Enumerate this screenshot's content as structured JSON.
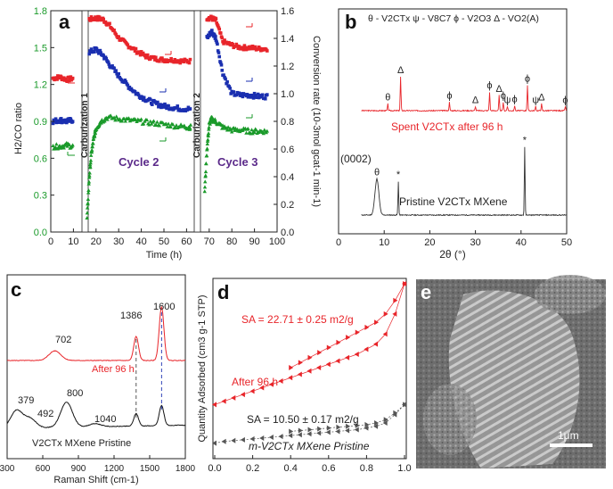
{
  "panels": {
    "a": {
      "letter": "a",
      "xlabel": "Time (h)",
      "ylabel_left": "H2/CO ratio",
      "ylabel_right": "Conversion rate (10-3mol gcat-1 min-1)",
      "left_ylim": [
        0.0,
        1.8
      ],
      "right_ylim": [
        0.0,
        1.6
      ],
      "xlim": [
        0,
        100
      ],
      "x_ticks": [
        0,
        10,
        20,
        30,
        40,
        50,
        60,
        70,
        80,
        90,
        100
      ],
      "left_ticks": [
        "0.0",
        "0.3",
        "0.6",
        "0.9",
        "1.2",
        "1.5",
        "1.8"
      ],
      "right_ticks": [
        "0.0",
        "0.2",
        "0.4",
        "0.6",
        "0.8",
        "1.0",
        "1.2",
        "1.4",
        "1.6"
      ],
      "band1_label": "Carburization 1",
      "band2_label": "Carburization 2",
      "cycle2_label": "Cycle 2",
      "cycle3_label": "Cycle 3",
      "colors": {
        "h2co": "#e8252a",
        "co2": "#1a2fb0",
        "ch4": "#1a9a2a",
        "band_label": "#5b2a8a"
      }
    },
    "b": {
      "letter": "b",
      "legend": "θ - V2CTx   ψ - V8C7   ϕ - V2O3   Δ - VO2(A)",
      "xlabel": "2θ (°)",
      "xlim": [
        0,
        50
      ],
      "x_ticks": [
        "0",
        "10",
        "20",
        "30",
        "40",
        "50"
      ],
      "spent_label": "Spent V2CTx after 96 h",
      "pristine_label": "Pristine V2CTx MXene",
      "plane_label": "(0002)",
      "markers_spent": [
        {
          "x": 10.8,
          "sym": "θ"
        },
        {
          "x": 13.6,
          "sym": "Δ"
        },
        {
          "x": 24.3,
          "sym": "ϕ"
        },
        {
          "x": 30.0,
          "sym": "Δ"
        },
        {
          "x": 33.1,
          "sym": "ϕ"
        },
        {
          "x": 35.2,
          "sym": "Δ"
        },
        {
          "x": 36.1,
          "sym": "ϕ"
        },
        {
          "x": 37.0,
          "sym": "ψ"
        },
        {
          "x": 38.6,
          "sym": "ϕ"
        },
        {
          "x": 41.4,
          "sym": "ϕ"
        },
        {
          "x": 43.2,
          "sym": "ψ"
        },
        {
          "x": 44.5,
          "sym": "Δ"
        },
        {
          "x": 49.7,
          "sym": "ϕ"
        }
      ],
      "markers_pristine": [
        {
          "x": 8.4,
          "sym": "θ"
        },
        {
          "x": 13.1,
          "sym": "*"
        },
        {
          "x": 40.8,
          "sym": "*"
        }
      ],
      "colors": {
        "spent": "#e8252a",
        "pristine": "#333333",
        "spent_label": "#e8252a"
      }
    },
    "c": {
      "letter": "c",
      "xlabel": "Raman Shift (cm-1)",
      "xlim": [
        300,
        1800
      ],
      "x_ticks": [
        "300",
        "600",
        "900",
        "1200",
        "1500",
        "1800"
      ],
      "after_label": "After 96 h",
      "pristine_label": "V2CTx MXene Pristine",
      "peak_labels": {
        "p1600": "1600",
        "p1386": "1386",
        "p702": "702",
        "p379": "379",
        "p492": "492",
        "p800": "800",
        "p1040": "1040"
      },
      "colors": {
        "after": "#e8252a",
        "pristine": "#111111",
        "guide_red": "#444444",
        "guide_blue": "#1a2fb0"
      }
    },
    "d": {
      "letter": "d",
      "ylabel": "Quantity Adsorbed (cm3 g-1 STP)",
      "xlim": [
        0.0,
        1.0
      ],
      "x_ticks": [
        "0.0",
        "0.2",
        "0.4",
        "0.6",
        "0.8",
        "1.0"
      ],
      "sa_after": "SA = 22.71 ± 0.25 m2/g",
      "sa_pristine": "SA = 10.50 ± 0.17 m2/g",
      "after_label": "After 96 h",
      "pristine_label": "m-V2CTx MXene Pristine",
      "colors": {
        "after": "#e8252a",
        "pristine": "#555555",
        "text_after": "#e8252a"
      }
    },
    "e": {
      "letter": "e",
      "scale_label": "1μm"
    }
  },
  "chart_data": [
    {
      "type": "scatter",
      "panel": "a",
      "title": "",
      "xlabel": "Time (h)",
      "ylabel": "H2/CO ratio / Conversion rate",
      "xlim": [
        0,
        100
      ],
      "ylim": [
        0,
        1.8
      ],
      "series": [
        {
          "name": "",
          "axis": "left",
          "segments": [
            {
              "x": [
                1,
                4,
                7,
                10
              ],
              "y": [
                1.25,
                1.26,
                1.24,
                1.25
              ]
            },
            {
              "x": [
                17,
                20,
                23,
                26,
                30,
                34,
                38,
                42,
                46,
                50,
                54,
                58,
                62
              ],
              "y": [
                1.73,
                1.74,
                1.73,
                1.68,
                1.58,
                1.52,
                1.47,
                1.43,
                1.41,
                1.4,
                1.4,
                1.39,
                1.39
              ]
            },
            {
              "x": [
                69,
                71,
                73,
                76,
                80,
                84,
                88,
                92,
                96
              ],
              "y": [
                1.74,
                1.74,
                1.72,
                1.55,
                1.52,
                1.5,
                1.5,
                1.49,
                1.49
              ]
            }
          ]
        },
        {
          "name": "",
          "axis": "right",
          "segments": [
            {
              "x": [
                1,
                4,
                7,
                10
              ],
              "y": [
                0.8,
                0.81,
                0.8,
                0.81
              ]
            },
            {
              "x": [
                17,
                20,
                23,
                26,
                30,
                34,
                38,
                42,
                46,
                50,
                54,
                58,
                62
              ],
              "y": [
                1.3,
                1.32,
                1.28,
                1.21,
                1.13,
                1.06,
                1.0,
                0.96,
                0.93,
                0.91,
                0.9,
                0.89,
                0.89
              ]
            },
            {
              "x": [
                69,
                71,
                73,
                76,
                80,
                84,
                88,
                92,
                96
              ],
              "y": [
                1.4,
                1.45,
                1.4,
                1.15,
                1.0,
                0.99,
                0.99,
                0.98,
                0.98
              ]
            }
          ]
        },
        {
          "name": "",
          "axis": "right",
          "segments": [
            {
              "x": [
                1,
                4,
                7,
                10
              ],
              "y": [
                0.62,
                0.62,
                0.63,
                0.62
              ]
            },
            {
              "x": [
                16,
                17,
                18,
                19,
                20,
                22,
                25,
                30,
                35,
                40,
                45,
                50,
                55,
                60,
                62
              ],
              "y": [
                0.1,
                0.4,
                0.58,
                0.68,
                0.75,
                0.8,
                0.83,
                0.82,
                0.81,
                0.8,
                0.79,
                0.78,
                0.77,
                0.76,
                0.76
              ]
            },
            {
              "x": [
                68,
                69,
                70,
                71,
                73,
                76,
                80,
                84,
                88,
                92,
                96
              ],
              "y": [
                0.3,
                0.6,
                0.78,
                0.82,
                0.8,
                0.76,
                0.74,
                0.74,
                0.73,
                0.73,
                0.73
              ]
            }
          ]
        }
      ]
    },
    {
      "type": "line",
      "panel": "b",
      "title": "",
      "xlabel": "2θ (°)",
      "xlim": [
        0,
        50
      ],
      "series": [
        {
          "name": "Spent V2CTx after 96 h",
          "peaks": [
            {
              "x": 10.8,
              "h": 0.08
            },
            {
              "x": 13.6,
              "h": 0.4
            },
            {
              "x": 24.3,
              "h": 0.1
            },
            {
              "x": 30.0,
              "h": 0.05
            },
            {
              "x": 33.1,
              "h": 0.22
            },
            {
              "x": 35.2,
              "h": 0.18
            },
            {
              "x": 36.1,
              "h": 0.1
            },
            {
              "x": 37.0,
              "h": 0.05
            },
            {
              "x": 38.6,
              "h": 0.06
            },
            {
              "x": 41.4,
              "h": 0.3
            },
            {
              "x": 43.2,
              "h": 0.05
            },
            {
              "x": 44.5,
              "h": 0.08
            },
            {
              "x": 49.7,
              "h": 0.05
            }
          ]
        },
        {
          "name": "Pristine V2CTx MXene",
          "peaks": [
            {
              "x": 8.4,
              "h": 0.45
            },
            {
              "x": 13.1,
              "h": 0.42
            },
            {
              "x": 40.8,
              "h": 0.85
            }
          ]
        }
      ]
    },
    {
      "type": "line",
      "panel": "c",
      "title": "",
      "xlabel": "Raman Shift (cm-1)",
      "xlim": [
        300,
        1800
      ],
      "series": [
        {
          "name": "After 96 h",
          "peaks": [
            {
              "x": 702,
              "h": 0.18
            },
            {
              "x": 1386,
              "h": 0.45
            },
            {
              "x": 1600,
              "h": 1.0
            }
          ]
        },
        {
          "name": "V2CTx MXene Pristine",
          "peaks": [
            {
              "x": 379,
              "h": 0.28
            },
            {
              "x": 492,
              "h": 0.15
            },
            {
              "x": 800,
              "h": 0.4
            },
            {
              "x": 1040,
              "h": 0.05
            },
            {
              "x": 1386,
              "h": 0.2
            },
            {
              "x": 1600,
              "h": 0.32
            }
          ]
        }
      ]
    },
    {
      "type": "scatter",
      "panel": "d",
      "title": "",
      "xlim": [
        0.0,
        1.0
      ],
      "series": [
        {
          "name": "After 96 h",
          "x": [
            0.0,
            0.05,
            0.1,
            0.15,
            0.2,
            0.25,
            0.3,
            0.35,
            0.4,
            0.45,
            0.5,
            0.55,
            0.6,
            0.65,
            0.7,
            0.75,
            0.8,
            0.85,
            0.9,
            0.95,
            1.0
          ],
          "adsorption": [
            0.28,
            0.3,
            0.32,
            0.34,
            0.36,
            0.38,
            0.4,
            0.42,
            0.44,
            0.46,
            0.48,
            0.5,
            0.52,
            0.54,
            0.56,
            0.58,
            0.61,
            0.64,
            0.7,
            0.82,
            1.0
          ],
          "desorption": [
            null,
            null,
            null,
            null,
            null,
            null,
            null,
            null,
            0.5,
            0.53,
            0.56,
            0.59,
            0.62,
            0.65,
            0.68,
            0.71,
            0.74,
            0.77,
            0.82,
            0.9,
            1.0
          ]
        },
        {
          "name": "m-V2CTx MXene Pristine",
          "x": [
            0.0,
            0.05,
            0.1,
            0.15,
            0.2,
            0.25,
            0.3,
            0.35,
            0.4,
            0.45,
            0.5,
            0.55,
            0.6,
            0.65,
            0.7,
            0.75,
            0.8,
            0.85,
            0.9,
            0.95,
            1.0
          ],
          "adsorption": [
            0.05,
            0.06,
            0.065,
            0.07,
            0.075,
            0.08,
            0.085,
            0.09,
            0.095,
            0.1,
            0.105,
            0.11,
            0.115,
            0.12,
            0.125,
            0.13,
            0.14,
            0.15,
            0.17,
            0.22,
            0.28
          ],
          "desorption": [
            null,
            null,
            null,
            null,
            null,
            null,
            null,
            null,
            0.12,
            0.125,
            0.13,
            0.135,
            0.14,
            0.145,
            0.15,
            0.155,
            0.16,
            0.17,
            0.19,
            0.23,
            0.28
          ]
        }
      ]
    }
  ]
}
